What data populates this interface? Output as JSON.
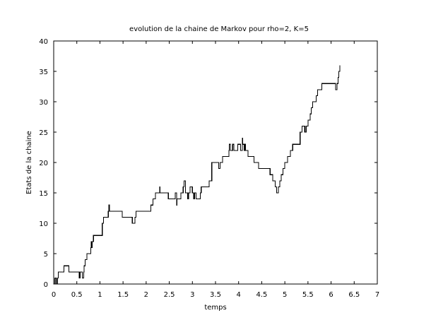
{
  "chart_data": {
    "type": "line",
    "step": true,
    "title": "evolution de la chaine de Markov pour rho=2, K=5",
    "xlabel": "temps",
    "ylabel": "Etats de la chaine",
    "xlim": [
      0,
      7
    ],
    "ylim": [
      0,
      40
    ],
    "x_ticks": [
      "0",
      "0.5",
      "1",
      "1.5",
      "2",
      "2.5",
      "3",
      "3.5",
      "4",
      "4.5",
      "5",
      "5.5",
      "6",
      "6.5",
      "7"
    ],
    "y_ticks": [
      "0",
      "5",
      "10",
      "15",
      "20",
      "25",
      "30",
      "35",
      "40"
    ],
    "grid": false,
    "series": [
      {
        "color": "#000000",
        "points": [
          [
            0.0,
            0
          ],
          [
            0.02,
            1
          ],
          [
            0.05,
            0
          ],
          [
            0.08,
            1
          ],
          [
            0.1,
            2
          ],
          [
            0.22,
            3
          ],
          [
            0.33,
            2
          ],
          [
            0.55,
            1
          ],
          [
            0.57,
            2
          ],
          [
            0.62,
            1
          ],
          [
            0.65,
            2
          ],
          [
            0.66,
            3
          ],
          [
            0.68,
            4
          ],
          [
            0.72,
            5
          ],
          [
            0.8,
            6
          ],
          [
            0.81,
            7
          ],
          [
            0.82,
            6
          ],
          [
            0.83,
            7
          ],
          [
            0.86,
            8
          ],
          [
            1.05,
            10
          ],
          [
            1.08,
            11
          ],
          [
            1.18,
            12
          ],
          [
            1.19,
            13
          ],
          [
            1.21,
            12
          ],
          [
            1.48,
            11
          ],
          [
            1.7,
            10
          ],
          [
            1.76,
            11
          ],
          [
            1.78,
            12
          ],
          [
            2.1,
            13
          ],
          [
            2.15,
            14
          ],
          [
            2.2,
            15
          ],
          [
            2.29,
            16
          ],
          [
            2.3,
            15
          ],
          [
            2.48,
            14
          ],
          [
            2.63,
            15
          ],
          [
            2.66,
            13
          ],
          [
            2.67,
            14
          ],
          [
            2.75,
            15
          ],
          [
            2.8,
            16
          ],
          [
            2.82,
            17
          ],
          [
            2.85,
            15
          ],
          [
            2.9,
            14
          ],
          [
            2.92,
            15
          ],
          [
            2.95,
            16
          ],
          [
            3.0,
            15
          ],
          [
            3.03,
            14
          ],
          [
            3.05,
            15
          ],
          [
            3.08,
            14
          ],
          [
            3.17,
            15
          ],
          [
            3.19,
            16
          ],
          [
            3.36,
            17
          ],
          [
            3.42,
            20
          ],
          [
            3.57,
            19
          ],
          [
            3.6,
            20
          ],
          [
            3.65,
            21
          ],
          [
            3.79,
            22
          ],
          [
            3.8,
            23
          ],
          [
            3.82,
            22
          ],
          [
            3.87,
            23
          ],
          [
            3.9,
            22
          ],
          [
            3.98,
            23
          ],
          [
            4.04,
            22
          ],
          [
            4.08,
            24
          ],
          [
            4.09,
            23
          ],
          [
            4.12,
            22
          ],
          [
            4.13,
            23
          ],
          [
            4.15,
            22
          ],
          [
            4.2,
            21
          ],
          [
            4.33,
            20
          ],
          [
            4.43,
            19
          ],
          [
            4.68,
            18
          ],
          [
            4.74,
            17
          ],
          [
            4.79,
            16
          ],
          [
            4.82,
            15
          ],
          [
            4.86,
            16
          ],
          [
            4.89,
            17
          ],
          [
            4.92,
            18
          ],
          [
            4.96,
            19
          ],
          [
            5.0,
            20
          ],
          [
            5.06,
            21
          ],
          [
            5.12,
            22
          ],
          [
            5.17,
            23
          ],
          [
            5.33,
            25
          ],
          [
            5.37,
            26
          ],
          [
            5.43,
            25
          ],
          [
            5.46,
            26
          ],
          [
            5.5,
            27
          ],
          [
            5.55,
            28
          ],
          [
            5.57,
            29
          ],
          [
            5.6,
            30
          ],
          [
            5.68,
            31
          ],
          [
            5.71,
            32
          ],
          [
            5.8,
            33
          ],
          [
            6.1,
            32
          ],
          [
            6.13,
            33
          ],
          [
            6.15,
            34
          ],
          [
            6.17,
            35
          ],
          [
            6.19,
            36
          ]
        ]
      }
    ]
  }
}
